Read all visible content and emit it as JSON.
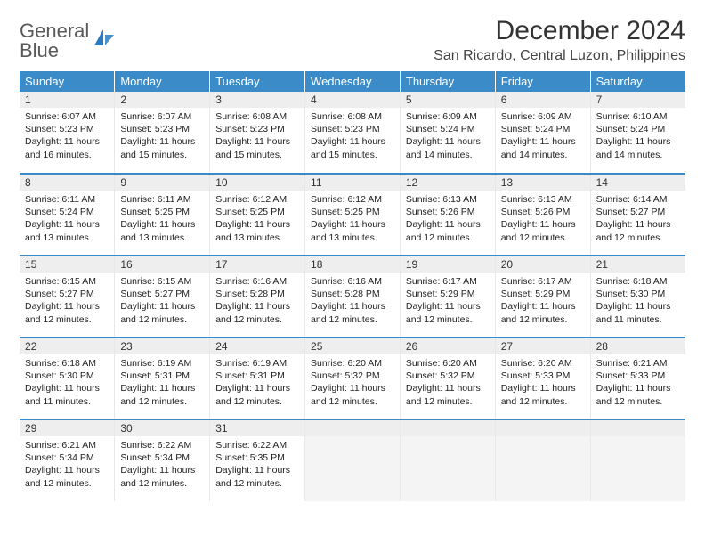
{
  "logo": {
    "line1": "General",
    "line2": "Blue"
  },
  "header": {
    "month_title": "December 2024",
    "location": "San Ricardo, Central Luzon, Philippines"
  },
  "weekdays": [
    "Sunday",
    "Monday",
    "Tuesday",
    "Wednesday",
    "Thursday",
    "Friday",
    "Saturday"
  ],
  "colors": {
    "header_bg": "#3b8bc9",
    "header_text": "#ffffff",
    "row_border": "#3b8bc9",
    "daynum_bg": "#eeeeee",
    "cell_border": "#e8e8e8",
    "logo_gray": "#5a5a5a",
    "logo_blue": "#2a7bbf"
  },
  "weeks": [
    [
      {
        "n": "1",
        "sr": "Sunrise: 6:07 AM",
        "ss": "Sunset: 5:23 PM",
        "d1": "Daylight: 11 hours",
        "d2": "and 16 minutes."
      },
      {
        "n": "2",
        "sr": "Sunrise: 6:07 AM",
        "ss": "Sunset: 5:23 PM",
        "d1": "Daylight: 11 hours",
        "d2": "and 15 minutes."
      },
      {
        "n": "3",
        "sr": "Sunrise: 6:08 AM",
        "ss": "Sunset: 5:23 PM",
        "d1": "Daylight: 11 hours",
        "d2": "and 15 minutes."
      },
      {
        "n": "4",
        "sr": "Sunrise: 6:08 AM",
        "ss": "Sunset: 5:23 PM",
        "d1": "Daylight: 11 hours",
        "d2": "and 15 minutes."
      },
      {
        "n": "5",
        "sr": "Sunrise: 6:09 AM",
        "ss": "Sunset: 5:24 PM",
        "d1": "Daylight: 11 hours",
        "d2": "and 14 minutes."
      },
      {
        "n": "6",
        "sr": "Sunrise: 6:09 AM",
        "ss": "Sunset: 5:24 PM",
        "d1": "Daylight: 11 hours",
        "d2": "and 14 minutes."
      },
      {
        "n": "7",
        "sr": "Sunrise: 6:10 AM",
        "ss": "Sunset: 5:24 PM",
        "d1": "Daylight: 11 hours",
        "d2": "and 14 minutes."
      }
    ],
    [
      {
        "n": "8",
        "sr": "Sunrise: 6:11 AM",
        "ss": "Sunset: 5:24 PM",
        "d1": "Daylight: 11 hours",
        "d2": "and 13 minutes."
      },
      {
        "n": "9",
        "sr": "Sunrise: 6:11 AM",
        "ss": "Sunset: 5:25 PM",
        "d1": "Daylight: 11 hours",
        "d2": "and 13 minutes."
      },
      {
        "n": "10",
        "sr": "Sunrise: 6:12 AM",
        "ss": "Sunset: 5:25 PM",
        "d1": "Daylight: 11 hours",
        "d2": "and 13 minutes."
      },
      {
        "n": "11",
        "sr": "Sunrise: 6:12 AM",
        "ss": "Sunset: 5:25 PM",
        "d1": "Daylight: 11 hours",
        "d2": "and 13 minutes."
      },
      {
        "n": "12",
        "sr": "Sunrise: 6:13 AM",
        "ss": "Sunset: 5:26 PM",
        "d1": "Daylight: 11 hours",
        "d2": "and 12 minutes."
      },
      {
        "n": "13",
        "sr": "Sunrise: 6:13 AM",
        "ss": "Sunset: 5:26 PM",
        "d1": "Daylight: 11 hours",
        "d2": "and 12 minutes."
      },
      {
        "n": "14",
        "sr": "Sunrise: 6:14 AM",
        "ss": "Sunset: 5:27 PM",
        "d1": "Daylight: 11 hours",
        "d2": "and 12 minutes."
      }
    ],
    [
      {
        "n": "15",
        "sr": "Sunrise: 6:15 AM",
        "ss": "Sunset: 5:27 PM",
        "d1": "Daylight: 11 hours",
        "d2": "and 12 minutes."
      },
      {
        "n": "16",
        "sr": "Sunrise: 6:15 AM",
        "ss": "Sunset: 5:27 PM",
        "d1": "Daylight: 11 hours",
        "d2": "and 12 minutes."
      },
      {
        "n": "17",
        "sr": "Sunrise: 6:16 AM",
        "ss": "Sunset: 5:28 PM",
        "d1": "Daylight: 11 hours",
        "d2": "and 12 minutes."
      },
      {
        "n": "18",
        "sr": "Sunrise: 6:16 AM",
        "ss": "Sunset: 5:28 PM",
        "d1": "Daylight: 11 hours",
        "d2": "and 12 minutes."
      },
      {
        "n": "19",
        "sr": "Sunrise: 6:17 AM",
        "ss": "Sunset: 5:29 PM",
        "d1": "Daylight: 11 hours",
        "d2": "and 12 minutes."
      },
      {
        "n": "20",
        "sr": "Sunrise: 6:17 AM",
        "ss": "Sunset: 5:29 PM",
        "d1": "Daylight: 11 hours",
        "d2": "and 12 minutes."
      },
      {
        "n": "21",
        "sr": "Sunrise: 6:18 AM",
        "ss": "Sunset: 5:30 PM",
        "d1": "Daylight: 11 hours",
        "d2": "and 11 minutes."
      }
    ],
    [
      {
        "n": "22",
        "sr": "Sunrise: 6:18 AM",
        "ss": "Sunset: 5:30 PM",
        "d1": "Daylight: 11 hours",
        "d2": "and 11 minutes."
      },
      {
        "n": "23",
        "sr": "Sunrise: 6:19 AM",
        "ss": "Sunset: 5:31 PM",
        "d1": "Daylight: 11 hours",
        "d2": "and 12 minutes."
      },
      {
        "n": "24",
        "sr": "Sunrise: 6:19 AM",
        "ss": "Sunset: 5:31 PM",
        "d1": "Daylight: 11 hours",
        "d2": "and 12 minutes."
      },
      {
        "n": "25",
        "sr": "Sunrise: 6:20 AM",
        "ss": "Sunset: 5:32 PM",
        "d1": "Daylight: 11 hours",
        "d2": "and 12 minutes."
      },
      {
        "n": "26",
        "sr": "Sunrise: 6:20 AM",
        "ss": "Sunset: 5:32 PM",
        "d1": "Daylight: 11 hours",
        "d2": "and 12 minutes."
      },
      {
        "n": "27",
        "sr": "Sunrise: 6:20 AM",
        "ss": "Sunset: 5:33 PM",
        "d1": "Daylight: 11 hours",
        "d2": "and 12 minutes."
      },
      {
        "n": "28",
        "sr": "Sunrise: 6:21 AM",
        "ss": "Sunset: 5:33 PM",
        "d1": "Daylight: 11 hours",
        "d2": "and 12 minutes."
      }
    ],
    [
      {
        "n": "29",
        "sr": "Sunrise: 6:21 AM",
        "ss": "Sunset: 5:34 PM",
        "d1": "Daylight: 11 hours",
        "d2": "and 12 minutes."
      },
      {
        "n": "30",
        "sr": "Sunrise: 6:22 AM",
        "ss": "Sunset: 5:34 PM",
        "d1": "Daylight: 11 hours",
        "d2": "and 12 minutes."
      },
      {
        "n": "31",
        "sr": "Sunrise: 6:22 AM",
        "ss": "Sunset: 5:35 PM",
        "d1": "Daylight: 11 hours",
        "d2": "and 12 minutes."
      },
      {
        "empty": true
      },
      {
        "empty": true
      },
      {
        "empty": true
      },
      {
        "empty": true
      }
    ]
  ]
}
